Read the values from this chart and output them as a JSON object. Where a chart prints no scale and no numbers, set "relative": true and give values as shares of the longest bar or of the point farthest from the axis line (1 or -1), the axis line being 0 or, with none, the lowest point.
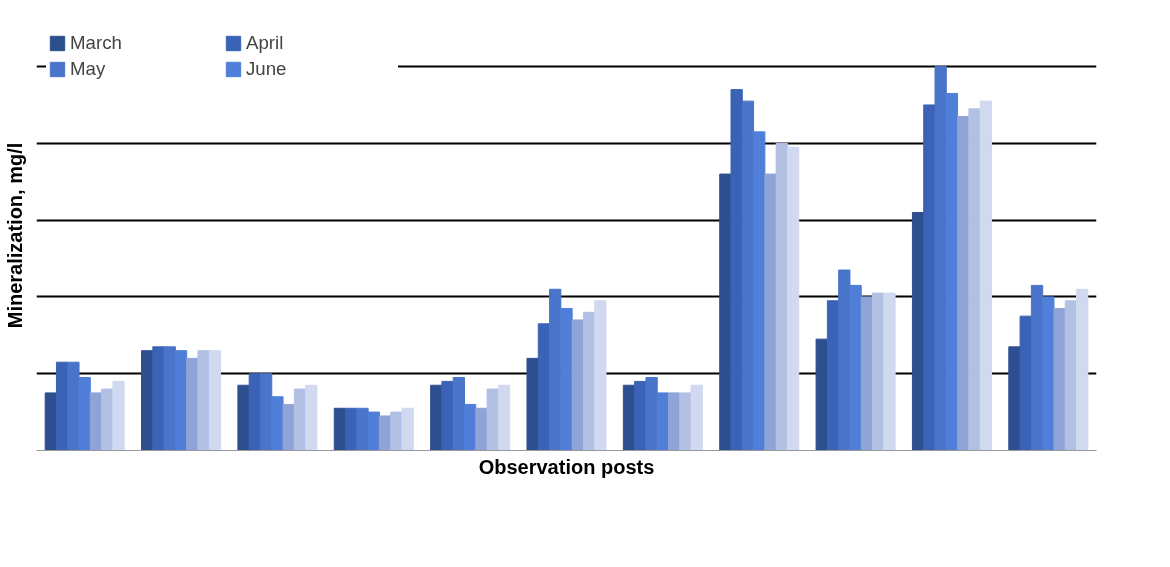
{
  "chart_data": {
    "type": "bar",
    "relative": true,
    "xlabel": "Observation posts",
    "ylabel": "Mineralization, mg/l",
    "categories": [
      null,
      null,
      null,
      null,
      null,
      null,
      null,
      null,
      null,
      null,
      null
    ],
    "grid": "y",
    "legend": "top left",
    "series": [
      {
        "name": "March",
        "color": "#2e4f8f",
        "values": [
          0.15,
          0.26,
          0.17,
          0.11,
          0.17,
          0.24,
          0.17,
          0.72,
          0.29,
          0.62,
          0.27
        ]
      },
      {
        "name": "April",
        "color": "#3a62b5",
        "values": [
          0.23,
          0.27,
          0.2,
          0.11,
          0.18,
          0.33,
          0.18,
          0.94,
          0.39,
          0.9,
          0.35
        ]
      },
      {
        "name": "May",
        "color": "#4a74c9",
        "values": [
          0.23,
          0.27,
          0.2,
          0.11,
          0.19,
          0.42,
          0.19,
          0.91,
          0.47,
          1,
          0.43
        ]
      },
      {
        "name": "June",
        "color": "#4f7fd8",
        "values": [
          0.19,
          0.26,
          0.14,
          0.1,
          0.12,
          0.37,
          0.15,
          0.83,
          0.43,
          0.93,
          0.4
        ]
      },
      {
        "color": "#8fa3d6",
        "values": [
          0.15,
          0.24,
          0.12,
          0.09,
          0.11,
          0.34,
          0.15,
          0.72,
          0.4,
          0.87,
          0.37
        ]
      },
      {
        "color": "#b2c0e3",
        "values": [
          0.16,
          0.26,
          0.16,
          0.1,
          0.16,
          0.36,
          0.15,
          0.8,
          0.41,
          0.89,
          0.39
        ]
      },
      {
        "color": "#d0d9ef",
        "values": [
          0.18,
          0.26,
          0.17,
          0.11,
          0.17,
          0.39,
          0.17,
          0.79,
          0.41,
          0.91,
          0.42
        ]
      }
    ]
  }
}
